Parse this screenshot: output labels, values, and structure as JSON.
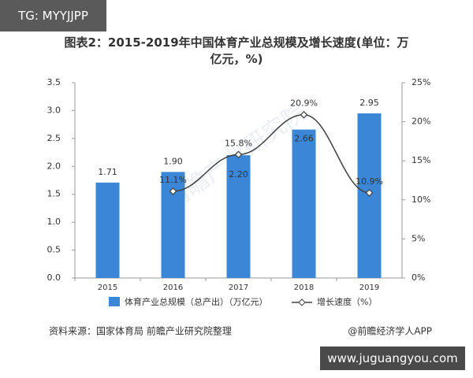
{
  "chart_data": {
    "type": "bar-line",
    "title": "图表2：2015-2019年中国体育产业总规模及增长速度(单位：万亿元，%)",
    "categories": [
      "2015",
      "2016",
      "2017",
      "2018",
      "2019"
    ],
    "series": [
      {
        "name": "体育产业总规模（总产出）（万亿元）",
        "type": "bar",
        "color": "#3b86d6",
        "values": [
          1.71,
          1.9,
          2.2,
          2.66,
          2.95
        ],
        "value_labels": [
          "1.71",
          "1.90",
          "2.20",
          "2.66",
          "2.95"
        ]
      },
      {
        "name": "增长速度（%）",
        "type": "line",
        "color": "#404040",
        "axis": "y2",
        "values": [
          null,
          11.1,
          15.8,
          20.9,
          10.9
        ],
        "value_labels": [
          null,
          "11.1%",
          "15.8%",
          "20.9%",
          "10.9%"
        ]
      }
    ],
    "ylim": [
      0,
      3.5
    ],
    "yticks": [
      {
        "value": 0,
        "label": "0.0"
      },
      {
        "value": 0.5,
        "label": "0.5"
      },
      {
        "value": 1,
        "label": "1.0"
      },
      {
        "value": 1.5,
        "label": "1.5"
      },
      {
        "value": 2,
        "label": "2.0"
      },
      {
        "value": 2.5,
        "label": "2.5"
      },
      {
        "value": 3,
        "label": "3.0"
      },
      {
        "value": 3.5,
        "label": "3.5"
      }
    ],
    "y2lim": [
      0,
      25
    ],
    "y2ticks": [
      {
        "value": 0,
        "label": "0%"
      },
      {
        "value": 5,
        "label": "5%"
      },
      {
        "value": 10,
        "label": "10%"
      },
      {
        "value": 15,
        "label": "15%"
      },
      {
        "value": 20,
        "label": "20%"
      },
      {
        "value": 25,
        "label": "25%"
      }
    ],
    "source": "资料来源：国家体育局 前瞻产业研究院整理",
    "credit": "@前瞻经济学人APP",
    "watermark": "前瞻产业研究院",
    "tag": "TG: MYYJJPP",
    "site": "www.juguangyou.com"
  }
}
